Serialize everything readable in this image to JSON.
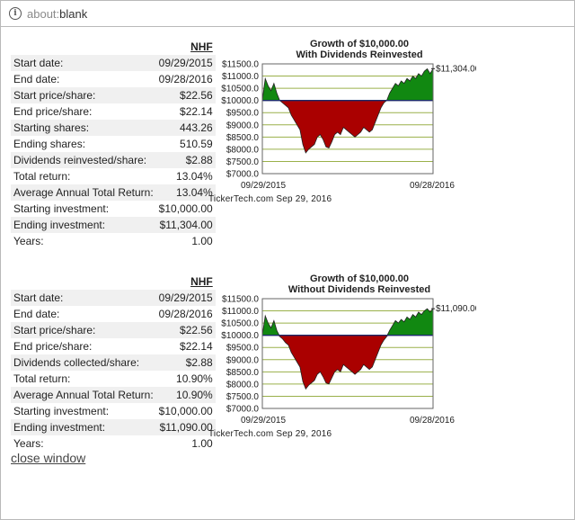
{
  "browser": {
    "url_scheme": "about:",
    "url_path": "blank"
  },
  "sections": [
    {
      "ticker": "NHF",
      "rows": [
        {
          "label": "Start date:",
          "value": "09/29/2015"
        },
        {
          "label": "End date:",
          "value": "09/28/2016"
        },
        {
          "label": "Start price/share:",
          "value": "$22.56"
        },
        {
          "label": "End price/share:",
          "value": "$22.14"
        },
        {
          "label": "Starting shares:",
          "value": "443.26"
        },
        {
          "label": "Ending shares:",
          "value": "510.59"
        },
        {
          "label": "Dividends reinvested/share:",
          "value": "$2.88"
        },
        {
          "label": "Total return:",
          "value": "13.04%"
        },
        {
          "label": "Average Annual Total Return:",
          "value": "13.04%"
        },
        {
          "label": "Starting investment:",
          "value": "$10,000.00"
        },
        {
          "label": "Ending investment:",
          "value": "$11,304.00"
        },
        {
          "label": "Years:",
          "value": "1.00"
        }
      ],
      "chart": {
        "title_line1": "Growth of $10,000.00",
        "title_line2": "With Dividends Reinvested",
        "end_label": "$11,304.00",
        "x_start": "09/29/2015",
        "x_end": "09/28/2016",
        "credit": "TickerTech.com  Sep 29, 2016"
      }
    },
    {
      "ticker": "NHF",
      "rows": [
        {
          "label": "Start date:",
          "value": "09/29/2015"
        },
        {
          "label": "End date:",
          "value": "09/28/2016"
        },
        {
          "label": "Start price/share:",
          "value": "$22.56"
        },
        {
          "label": "End price/share:",
          "value": "$22.14"
        },
        {
          "label": "Dividends collected/share:",
          "value": "$2.88"
        },
        {
          "label": "Total return:",
          "value": "10.90%"
        },
        {
          "label": "Average Annual Total Return:",
          "value": "10.90%"
        },
        {
          "label": "Starting investment:",
          "value": "$10,000.00"
        },
        {
          "label": "Ending investment:",
          "value": "$11,090.00"
        },
        {
          "label": "Years:",
          "value": "1.00"
        }
      ],
      "chart": {
        "title_line1": "Growth of $10,000.00",
        "title_line2": "Without Dividends Reinvested",
        "end_label": "$11,090.00",
        "x_start": "09/29/2015",
        "x_end": "09/28/2016",
        "credit": "TickerTech.com  Sep 29, 2016"
      }
    }
  ],
  "close_link": "close window",
  "colors": {
    "gain": "#118811",
    "loss": "#aa0000",
    "grid": "#9ab04a",
    "baseline": "#1a2a6a"
  },
  "chart_data": [
    {
      "type": "area",
      "title": "Growth of $10,000.00 With Dividends Reinvested",
      "baseline": 10000,
      "ylim": [
        7000,
        11500
      ],
      "yticks": [
        "$7000.0",
        "$7500.0",
        "$8000.0",
        "$8500.0",
        "$9000.0",
        "$9500.0",
        "$10000.0",
        "$10500.0",
        "$11000.0",
        "$11500.0"
      ],
      "x_labels": [
        "09/29/2015",
        "09/28/2016"
      ],
      "grid": true,
      "values": [
        10000,
        10900,
        10600,
        10400,
        10700,
        10300,
        10000,
        9900,
        9800,
        9700,
        9400,
        9200,
        9000,
        8800,
        8200,
        7850,
        8000,
        8100,
        8200,
        8500,
        8600,
        8400,
        8100,
        8050,
        8300,
        8600,
        8700,
        8600,
        8900,
        8800,
        8700,
        8600,
        8500,
        8600,
        8700,
        8900,
        8800,
        8700,
        8800,
        9100,
        9400,
        9700,
        9900,
        10000,
        10300,
        10500,
        10700,
        10600,
        10800,
        10700,
        10900,
        10800,
        11000,
        10900,
        11100,
        11000,
        11200,
        11300,
        11100,
        11304
      ]
    },
    {
      "type": "area",
      "title": "Growth of $10,000.00 Without Dividends Reinvested",
      "baseline": 10000,
      "ylim": [
        7000,
        11500
      ],
      "yticks": [
        "$7000.0",
        "$7500.0",
        "$8000.0",
        "$8500.0",
        "$9000.0",
        "$9500.0",
        "$10000.0",
        "$10500.0",
        "$11000.0",
        "$11500.0"
      ],
      "x_labels": [
        "09/29/2015",
        "09/28/2016"
      ],
      "grid": true,
      "values": [
        10000,
        10800,
        10500,
        10300,
        10600,
        10200,
        9950,
        9850,
        9700,
        9600,
        9300,
        9100,
        8900,
        8700,
        8100,
        7800,
        7950,
        8050,
        8150,
        8400,
        8500,
        8300,
        8050,
        8000,
        8250,
        8500,
        8600,
        8500,
        8800,
        8700,
        8600,
        8500,
        8400,
        8500,
        8600,
        8800,
        8700,
        8600,
        8700,
        9000,
        9300,
        9600,
        9800,
        9950,
        10200,
        10400,
        10600,
        10500,
        10650,
        10550,
        10750,
        10650,
        10850,
        10750,
        10950,
        10850,
        11000,
        11090,
        10950,
        11090
      ]
    }
  ]
}
